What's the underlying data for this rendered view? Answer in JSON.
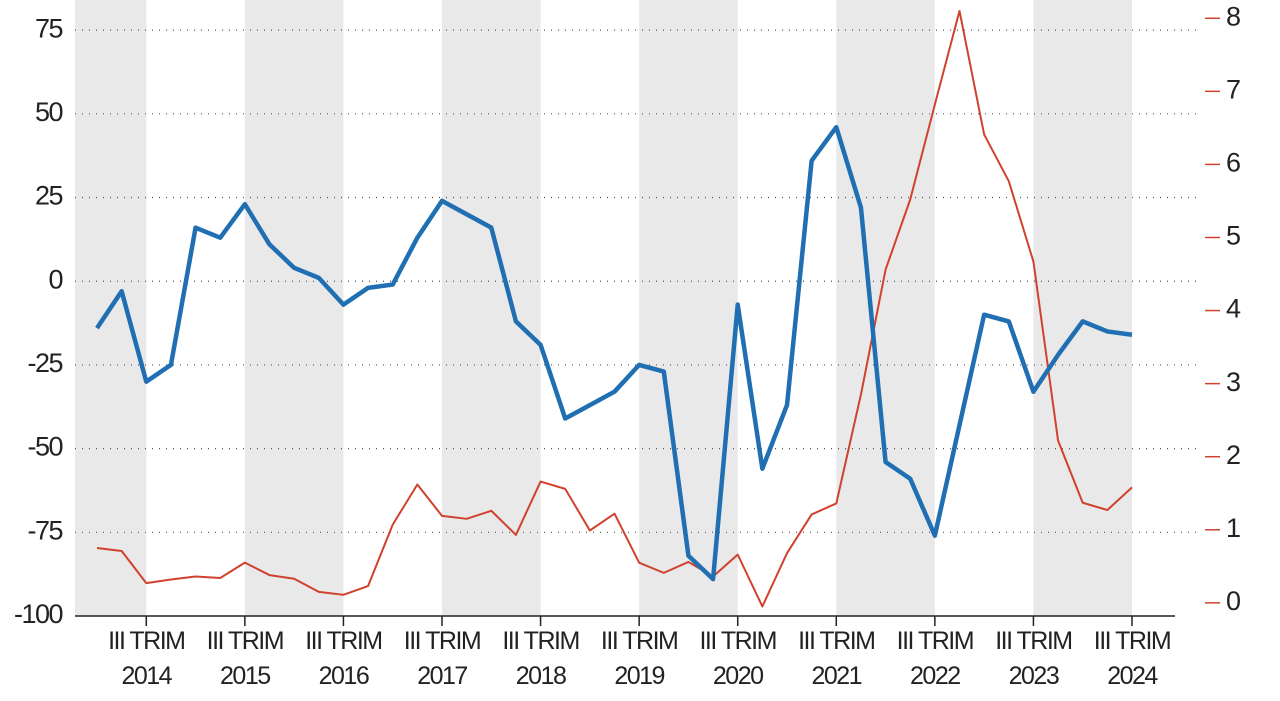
{
  "chart_data": {
    "type": "line",
    "categories": [
      null,
      null,
      "III TRIM 2014",
      null,
      null,
      null,
      "III TRIM 2015",
      null,
      null,
      null,
      "III TRIM 2016",
      null,
      null,
      null,
      "III TRIM 2017",
      null,
      null,
      null,
      "III TRIM 2018",
      null,
      null,
      null,
      "III TRIM 2019",
      null,
      null,
      null,
      "III TRIM 2020",
      null,
      null,
      null,
      "III TRIM 2021",
      null,
      null,
      null,
      "III TRIM 2022",
      null,
      null,
      null,
      "III TRIM 2023",
      null,
      null,
      null,
      "III TRIM 2024"
    ],
    "series": [
      {
        "color": "#1f6fb2",
        "values": [
          -14,
          -3,
          -30,
          -25,
          16,
          13,
          23,
          11,
          4,
          1,
          -7,
          -2,
          -1,
          13,
          24,
          20,
          16,
          -12,
          -19,
          -41,
          -37,
          -33,
          -25,
          -27,
          -82,
          -89,
          -7,
          -56,
          -37,
          36,
          46,
          22,
          -54,
          -59,
          -76,
          -43,
          -10,
          -12,
          -33,
          -22,
          -12,
          -15,
          -16
        ]
      },
      {
        "color": "#d0412e",
        "axis": "y2",
        "values": [
          0.75,
          0.71,
          0.27,
          0.32,
          0.36,
          0.34,
          0.55,
          0.38,
          0.33,
          0.15,
          0.11,
          0.23,
          1.07,
          1.62,
          1.19,
          1.15,
          1.26,
          0.93,
          1.66,
          1.56,
          0.99,
          1.22,
          0.55,
          0.41,
          0.56,
          0.36,
          0.66,
          -0.05,
          0.68,
          1.21,
          1.36,
          2.85,
          4.56,
          5.52,
          6.82,
          8.1,
          6.41,
          5.77,
          4.67,
          2.22,
          1.37,
          1.27,
          1.58
        ]
      }
    ],
    "ylim": [
      -100,
      84
    ],
    "yticks": [
      -100,
      -75,
      -50,
      -25,
      0,
      25,
      50,
      75
    ],
    "y2lim": [
      -0.18,
      8.25
    ],
    "y2ticks": [
      0,
      1,
      2,
      3,
      4,
      5,
      6,
      7,
      8
    ],
    "grid": true
  }
}
